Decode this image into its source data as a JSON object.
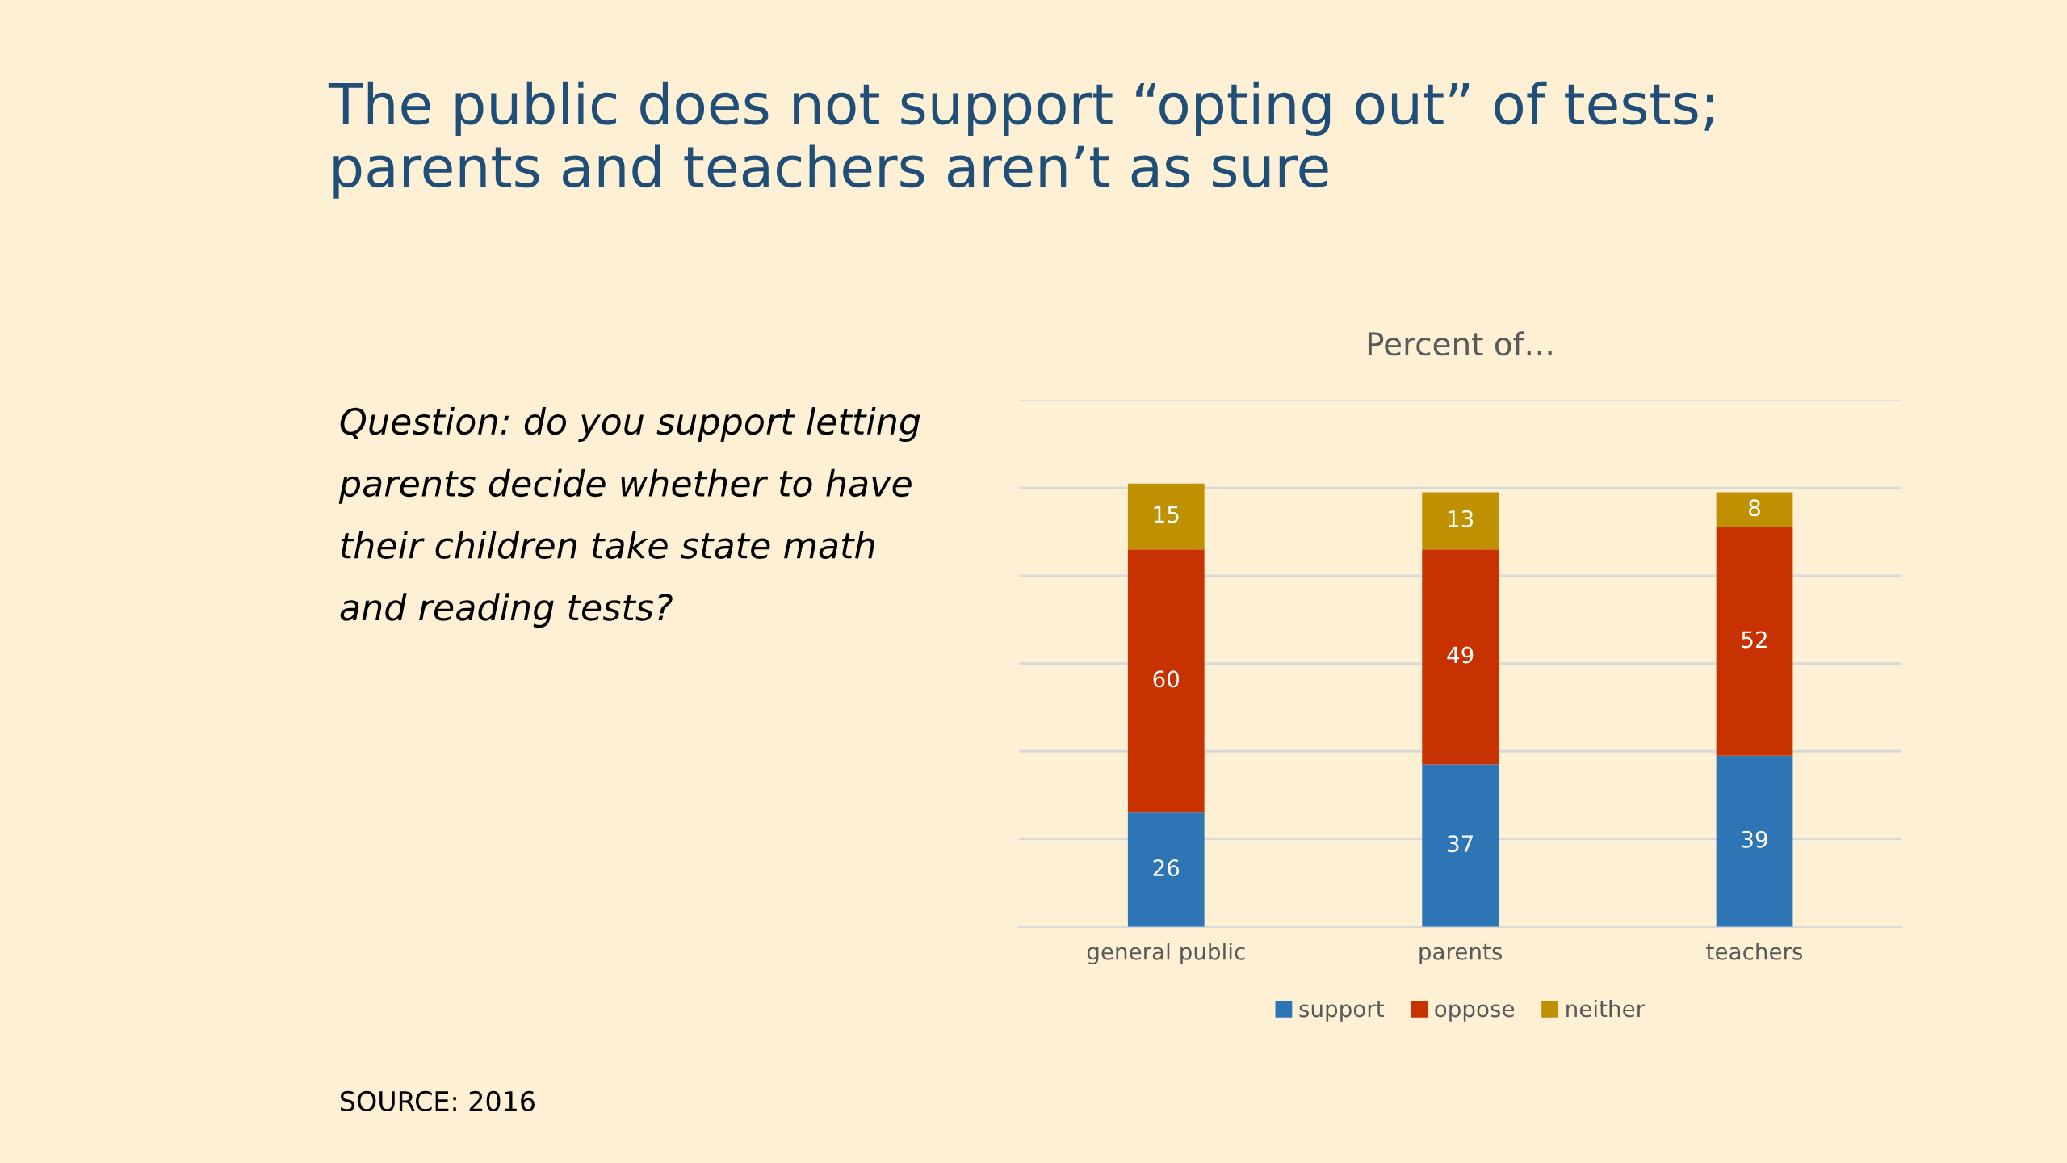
{
  "chart_data": {
    "type": "bar",
    "title": "The public does not support “opting out” of tests;\nparents and teachers aren’t as sure",
    "subtitle": "Percent of…",
    "categories": [
      "general public",
      "parents",
      "teachers"
    ],
    "series": [
      {
        "name": "support",
        "color": "#2e75b6",
        "values": [
          26,
          37,
          39
        ]
      },
      {
        "name": "oppose",
        "color": "#c83200",
        "values": [
          60,
          49,
          52
        ]
      },
      {
        "name": "neither",
        "color": "#bf9000",
        "values": [
          15,
          13,
          8
        ]
      }
    ],
    "stacked": true,
    "data_labels": true,
    "ylim": [
      0,
      120
    ],
    "yticks": [
      {
        "value": 0,
        "label": null
      },
      {
        "value": 20,
        "label": null
      },
      {
        "value": 40,
        "label": null
      },
      {
        "value": 60,
        "label": null
      },
      {
        "value": 80,
        "label": null
      },
      {
        "value": 100,
        "label": null
      },
      {
        "value": 120,
        "label": null
      }
    ],
    "tick_labels": "x",
    "grid": "y",
    "legend": "bottom",
    "annotations": [
      "Question: do you support letting parents decide whether to have their children take state math and reading tests?",
      "SOURCE: 2016"
    ]
  }
}
